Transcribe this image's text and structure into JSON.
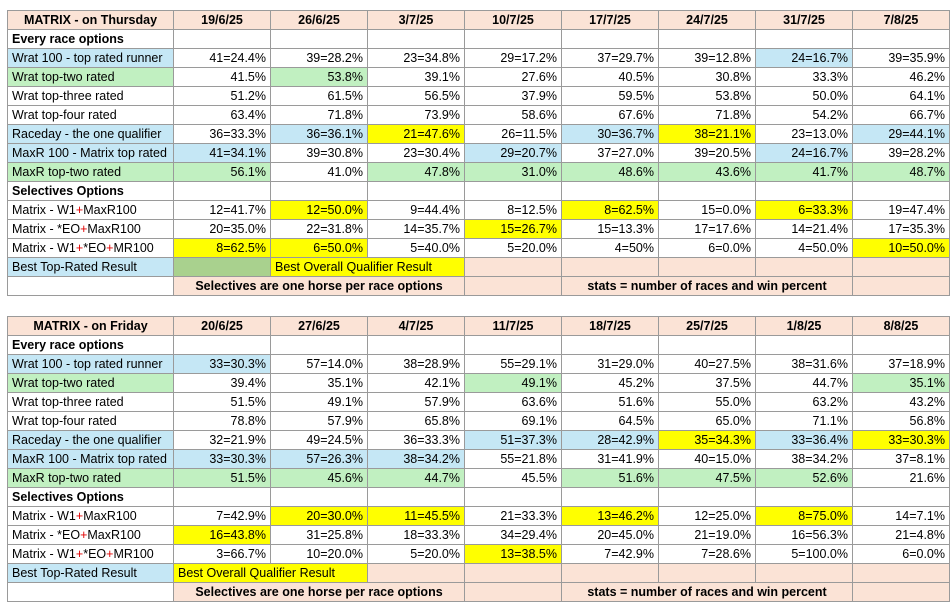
{
  "thursday": {
    "title": "MATRIX - on Thursday",
    "dates": [
      "19/6/25",
      "26/6/25",
      "3/7/25",
      "10/7/25",
      "17/7/25",
      "24/7/25",
      "31/7/25",
      "7/8/25"
    ],
    "every_race_label": "Every race options",
    "every_race_rows": [
      {
        "label": "Wrat 100 - top rated runner",
        "lc": "b",
        "cells": [
          [
            "41=24.4%",
            ""
          ],
          [
            "39=28.2%",
            ""
          ],
          [
            "23=34.8%",
            ""
          ],
          [
            "29=17.2%",
            ""
          ],
          [
            "37=29.7%",
            ""
          ],
          [
            "39=12.8%",
            ""
          ],
          [
            "24=16.7%",
            "b"
          ],
          [
            "39=35.9%",
            ""
          ]
        ]
      },
      {
        "label": "Wrat top-two rated",
        "lc": "g",
        "cells": [
          [
            "41.5%",
            ""
          ],
          [
            "53.8%",
            "g"
          ],
          [
            "39.1%",
            ""
          ],
          [
            "27.6%",
            ""
          ],
          [
            "40.5%",
            ""
          ],
          [
            "30.8%",
            ""
          ],
          [
            "33.3%",
            ""
          ],
          [
            "46.2%",
            ""
          ]
        ]
      },
      {
        "label": "Wrat top-three rated",
        "lc": "",
        "cells": [
          [
            "51.2%",
            ""
          ],
          [
            "61.5%",
            ""
          ],
          [
            "56.5%",
            ""
          ],
          [
            "37.9%",
            ""
          ],
          [
            "59.5%",
            ""
          ],
          [
            "53.8%",
            ""
          ],
          [
            "50.0%",
            ""
          ],
          [
            "64.1%",
            ""
          ]
        ]
      },
      {
        "label": "Wrat top-four rated",
        "lc": "",
        "cells": [
          [
            "63.4%",
            ""
          ],
          [
            "71.8%",
            ""
          ],
          [
            "73.9%",
            ""
          ],
          [
            "58.6%",
            ""
          ],
          [
            "67.6%",
            ""
          ],
          [
            "71.8%",
            ""
          ],
          [
            "54.2%",
            ""
          ],
          [
            "66.7%",
            ""
          ]
        ]
      },
      {
        "label": "Raceday - the one qualifier",
        "lc": "b",
        "cells": [
          [
            "36=33.3%",
            ""
          ],
          [
            "36=36.1%",
            "b"
          ],
          [
            "21=47.6%",
            "y"
          ],
          [
            "26=11.5%",
            ""
          ],
          [
            "30=36.7%",
            "b"
          ],
          [
            "38=21.1%",
            "y"
          ],
          [
            "23=13.0%",
            ""
          ],
          [
            "29=44.1%",
            "b"
          ]
        ]
      },
      {
        "label": "MaxR 100 - Matrix top rated",
        "lc": "b",
        "cells": [
          [
            "41=34.1%",
            "b"
          ],
          [
            "39=30.8%",
            ""
          ],
          [
            "23=30.4%",
            ""
          ],
          [
            "29=20.7%",
            "b"
          ],
          [
            "37=27.0%",
            ""
          ],
          [
            "39=20.5%",
            ""
          ],
          [
            "24=16.7%",
            "b"
          ],
          [
            "39=28.2%",
            ""
          ]
        ]
      },
      {
        "label": "MaxR top-two rated",
        "lc": "g",
        "cells": [
          [
            "56.1%",
            "g"
          ],
          [
            "41.0%",
            ""
          ],
          [
            "47.8%",
            "g"
          ],
          [
            "31.0%",
            "g"
          ],
          [
            "48.6%",
            "g"
          ],
          [
            "43.6%",
            "g"
          ],
          [
            "41.7%",
            "g"
          ],
          [
            "48.7%",
            "g"
          ]
        ]
      }
    ],
    "selectives_label": "Selectives Options",
    "selective_rows": [
      {
        "pre": "Matrix - W1",
        "mid": "+",
        "post": "MaxR100",
        "mid2": "",
        "post2": "",
        "cells": [
          [
            "12=41.7%",
            ""
          ],
          [
            "12=50.0%",
            "y"
          ],
          [
            "9=44.4%",
            ""
          ],
          [
            "8=12.5%",
            ""
          ],
          [
            "8=62.5%",
            "y"
          ],
          [
            "15=0.0%",
            ""
          ],
          [
            "6=33.3%",
            "y"
          ],
          [
            "19=47.4%",
            ""
          ]
        ]
      },
      {
        "pre": "Matrix - *EO",
        "mid": "+",
        "post": "MaxR100",
        "mid2": "",
        "post2": "",
        "cells": [
          [
            "20=35.0%",
            ""
          ],
          [
            "22=31.8%",
            ""
          ],
          [
            "14=35.7%",
            ""
          ],
          [
            "15=26.7%",
            "y"
          ],
          [
            "15=13.3%",
            ""
          ],
          [
            "17=17.6%",
            ""
          ],
          [
            "14=21.4%",
            ""
          ],
          [
            "17=35.3%",
            ""
          ]
        ]
      },
      {
        "pre": "Matrix - W1",
        "mid": "+",
        "post": "*EO",
        "mid2": "+",
        "post2": "MR100",
        "cells": [
          [
            "8=62.5%",
            "y"
          ],
          [
            "6=50.0%",
            "y"
          ],
          [
            "5=40.0%",
            ""
          ],
          [
            "5=20.0%",
            ""
          ],
          [
            "4=50%",
            ""
          ],
          [
            "6=0.0%",
            ""
          ],
          [
            "4=50.0%",
            ""
          ],
          [
            "10=50.0%",
            "y"
          ]
        ]
      }
    ],
    "legend_top": "Best Top-Rated Result",
    "legend_overall": "Best Overall Qualifier Result",
    "note_selectives": "Selectives are one horse per race options",
    "note_stats": "stats = number of races and win percent"
  },
  "friday": {
    "title": "MATRIX - on Friday",
    "dates": [
      "20/6/25",
      "27/6/25",
      "4/7/25",
      "11/7/25",
      "18/7/25",
      "25/7/25",
      "1/8/25",
      "8/8/25"
    ],
    "every_race_label": "Every race options",
    "every_race_rows": [
      {
        "label": "Wrat 100 - top rated runner",
        "lc": "b",
        "cells": [
          [
            "33=30.3%",
            "b"
          ],
          [
            "57=14.0%",
            ""
          ],
          [
            "38=28.9%",
            ""
          ],
          [
            "55=29.1%",
            ""
          ],
          [
            "31=29.0%",
            ""
          ],
          [
            "40=27.5%",
            ""
          ],
          [
            "38=31.6%",
            ""
          ],
          [
            "37=18.9%",
            ""
          ]
        ]
      },
      {
        "label": "Wrat top-two rated",
        "lc": "g",
        "cells": [
          [
            "39.4%",
            ""
          ],
          [
            "35.1%",
            ""
          ],
          [
            "42.1%",
            ""
          ],
          [
            "49.1%",
            "g"
          ],
          [
            "45.2%",
            ""
          ],
          [
            "37.5%",
            ""
          ],
          [
            "44.7%",
            ""
          ],
          [
            "35.1%",
            "g"
          ]
        ]
      },
      {
        "label": "Wrat top-three rated",
        "lc": "",
        "cells": [
          [
            "51.5%",
            ""
          ],
          [
            "49.1%",
            ""
          ],
          [
            "57.9%",
            ""
          ],
          [
            "63.6%",
            ""
          ],
          [
            "51.6%",
            ""
          ],
          [
            "55.0%",
            ""
          ],
          [
            "63.2%",
            ""
          ],
          [
            "43.2%",
            ""
          ]
        ]
      },
      {
        "label": "Wrat top-four rated",
        "lc": "",
        "cells": [
          [
            "78.8%",
            ""
          ],
          [
            "57.9%",
            ""
          ],
          [
            "65.8%",
            ""
          ],
          [
            "69.1%",
            ""
          ],
          [
            "64.5%",
            ""
          ],
          [
            "65.0%",
            ""
          ],
          [
            "71.1%",
            ""
          ],
          [
            "56.8%",
            ""
          ]
        ]
      },
      {
        "label": "Raceday - the one qualifier",
        "lc": "b",
        "cells": [
          [
            "32=21.9%",
            ""
          ],
          [
            "49=24.5%",
            ""
          ],
          [
            "36=33.3%",
            ""
          ],
          [
            "51=37.3%",
            "b"
          ],
          [
            "28=42.9%",
            "b"
          ],
          [
            "35=34.3%",
            "y"
          ],
          [
            "33=36.4%",
            "b"
          ],
          [
            "33=30.3%",
            "y"
          ]
        ]
      },
      {
        "label": "MaxR 100 - Matrix top rated",
        "lc": "b",
        "cells": [
          [
            "33=30.3%",
            "b"
          ],
          [
            "57=26.3%",
            "b"
          ],
          [
            "38=34.2%",
            "b"
          ],
          [
            "55=21.8%",
            ""
          ],
          [
            "31=41.9%",
            ""
          ],
          [
            "40=15.0%",
            ""
          ],
          [
            "38=34.2%",
            ""
          ],
          [
            "37=8.1%",
            ""
          ]
        ]
      },
      {
        "label": "MaxR top-two rated",
        "lc": "g",
        "cells": [
          [
            "51.5%",
            "g"
          ],
          [
            "45.6%",
            "g"
          ],
          [
            "44.7%",
            "g"
          ],
          [
            "45.5%",
            ""
          ],
          [
            "51.6%",
            "g"
          ],
          [
            "47.5%",
            "g"
          ],
          [
            "52.6%",
            "g"
          ],
          [
            "21.6%",
            ""
          ]
        ]
      }
    ],
    "selectives_label": "Selectives Options",
    "selective_rows": [
      {
        "pre": "Matrix - W1",
        "mid": "+",
        "post": "MaxR100",
        "mid2": "",
        "post2": "",
        "cells": [
          [
            "7=42.9%",
            ""
          ],
          [
            "20=30.0%",
            "y"
          ],
          [
            "11=45.5%",
            "y"
          ],
          [
            "21=33.3%",
            ""
          ],
          [
            "13=46.2%",
            "y"
          ],
          [
            "12=25.0%",
            ""
          ],
          [
            "8=75.0%",
            "y"
          ],
          [
            "14=7.1%",
            ""
          ]
        ]
      },
      {
        "pre": "Matrix - *EO",
        "mid": "+",
        "post": "MaxR100",
        "mid2": "",
        "post2": "",
        "cells": [
          [
            "16=43.8%",
            "y"
          ],
          [
            "31=25.8%",
            ""
          ],
          [
            "18=33.3%",
            ""
          ],
          [
            "34=29.4%",
            ""
          ],
          [
            "20=45.0%",
            ""
          ],
          [
            "21=19.0%",
            ""
          ],
          [
            "16=56.3%",
            ""
          ],
          [
            "21=4.8%",
            ""
          ]
        ]
      },
      {
        "pre": "Matrix - W1",
        "mid": "+",
        "post": "*EO",
        "mid2": "+",
        "post2": "MR100",
        "cells": [
          [
            "3=66.7%",
            ""
          ],
          [
            "10=20.0%",
            ""
          ],
          [
            "5=20.0%",
            ""
          ],
          [
            "13=38.5%",
            "y"
          ],
          [
            "7=42.9%",
            ""
          ],
          [
            "7=28.6%",
            ""
          ],
          [
            "5=100.0%",
            ""
          ],
          [
            "6=0.0%",
            ""
          ]
        ]
      }
    ],
    "legend_top": "Best Top-Rated Result",
    "legend_overall": "Best Overall Qualifier Result",
    "note_selectives": "Selectives are one horse per race options",
    "note_stats": "stats = number of races and win percent"
  },
  "colors": {
    "header_bg": "#fbe3d6",
    "blue_highlight": "#c5e7f5",
    "green_highlight": "#c1f0c1",
    "yellow_highlight": "#ffff00",
    "legend_green": "#a9d18e",
    "section_red": "#e00000"
  }
}
